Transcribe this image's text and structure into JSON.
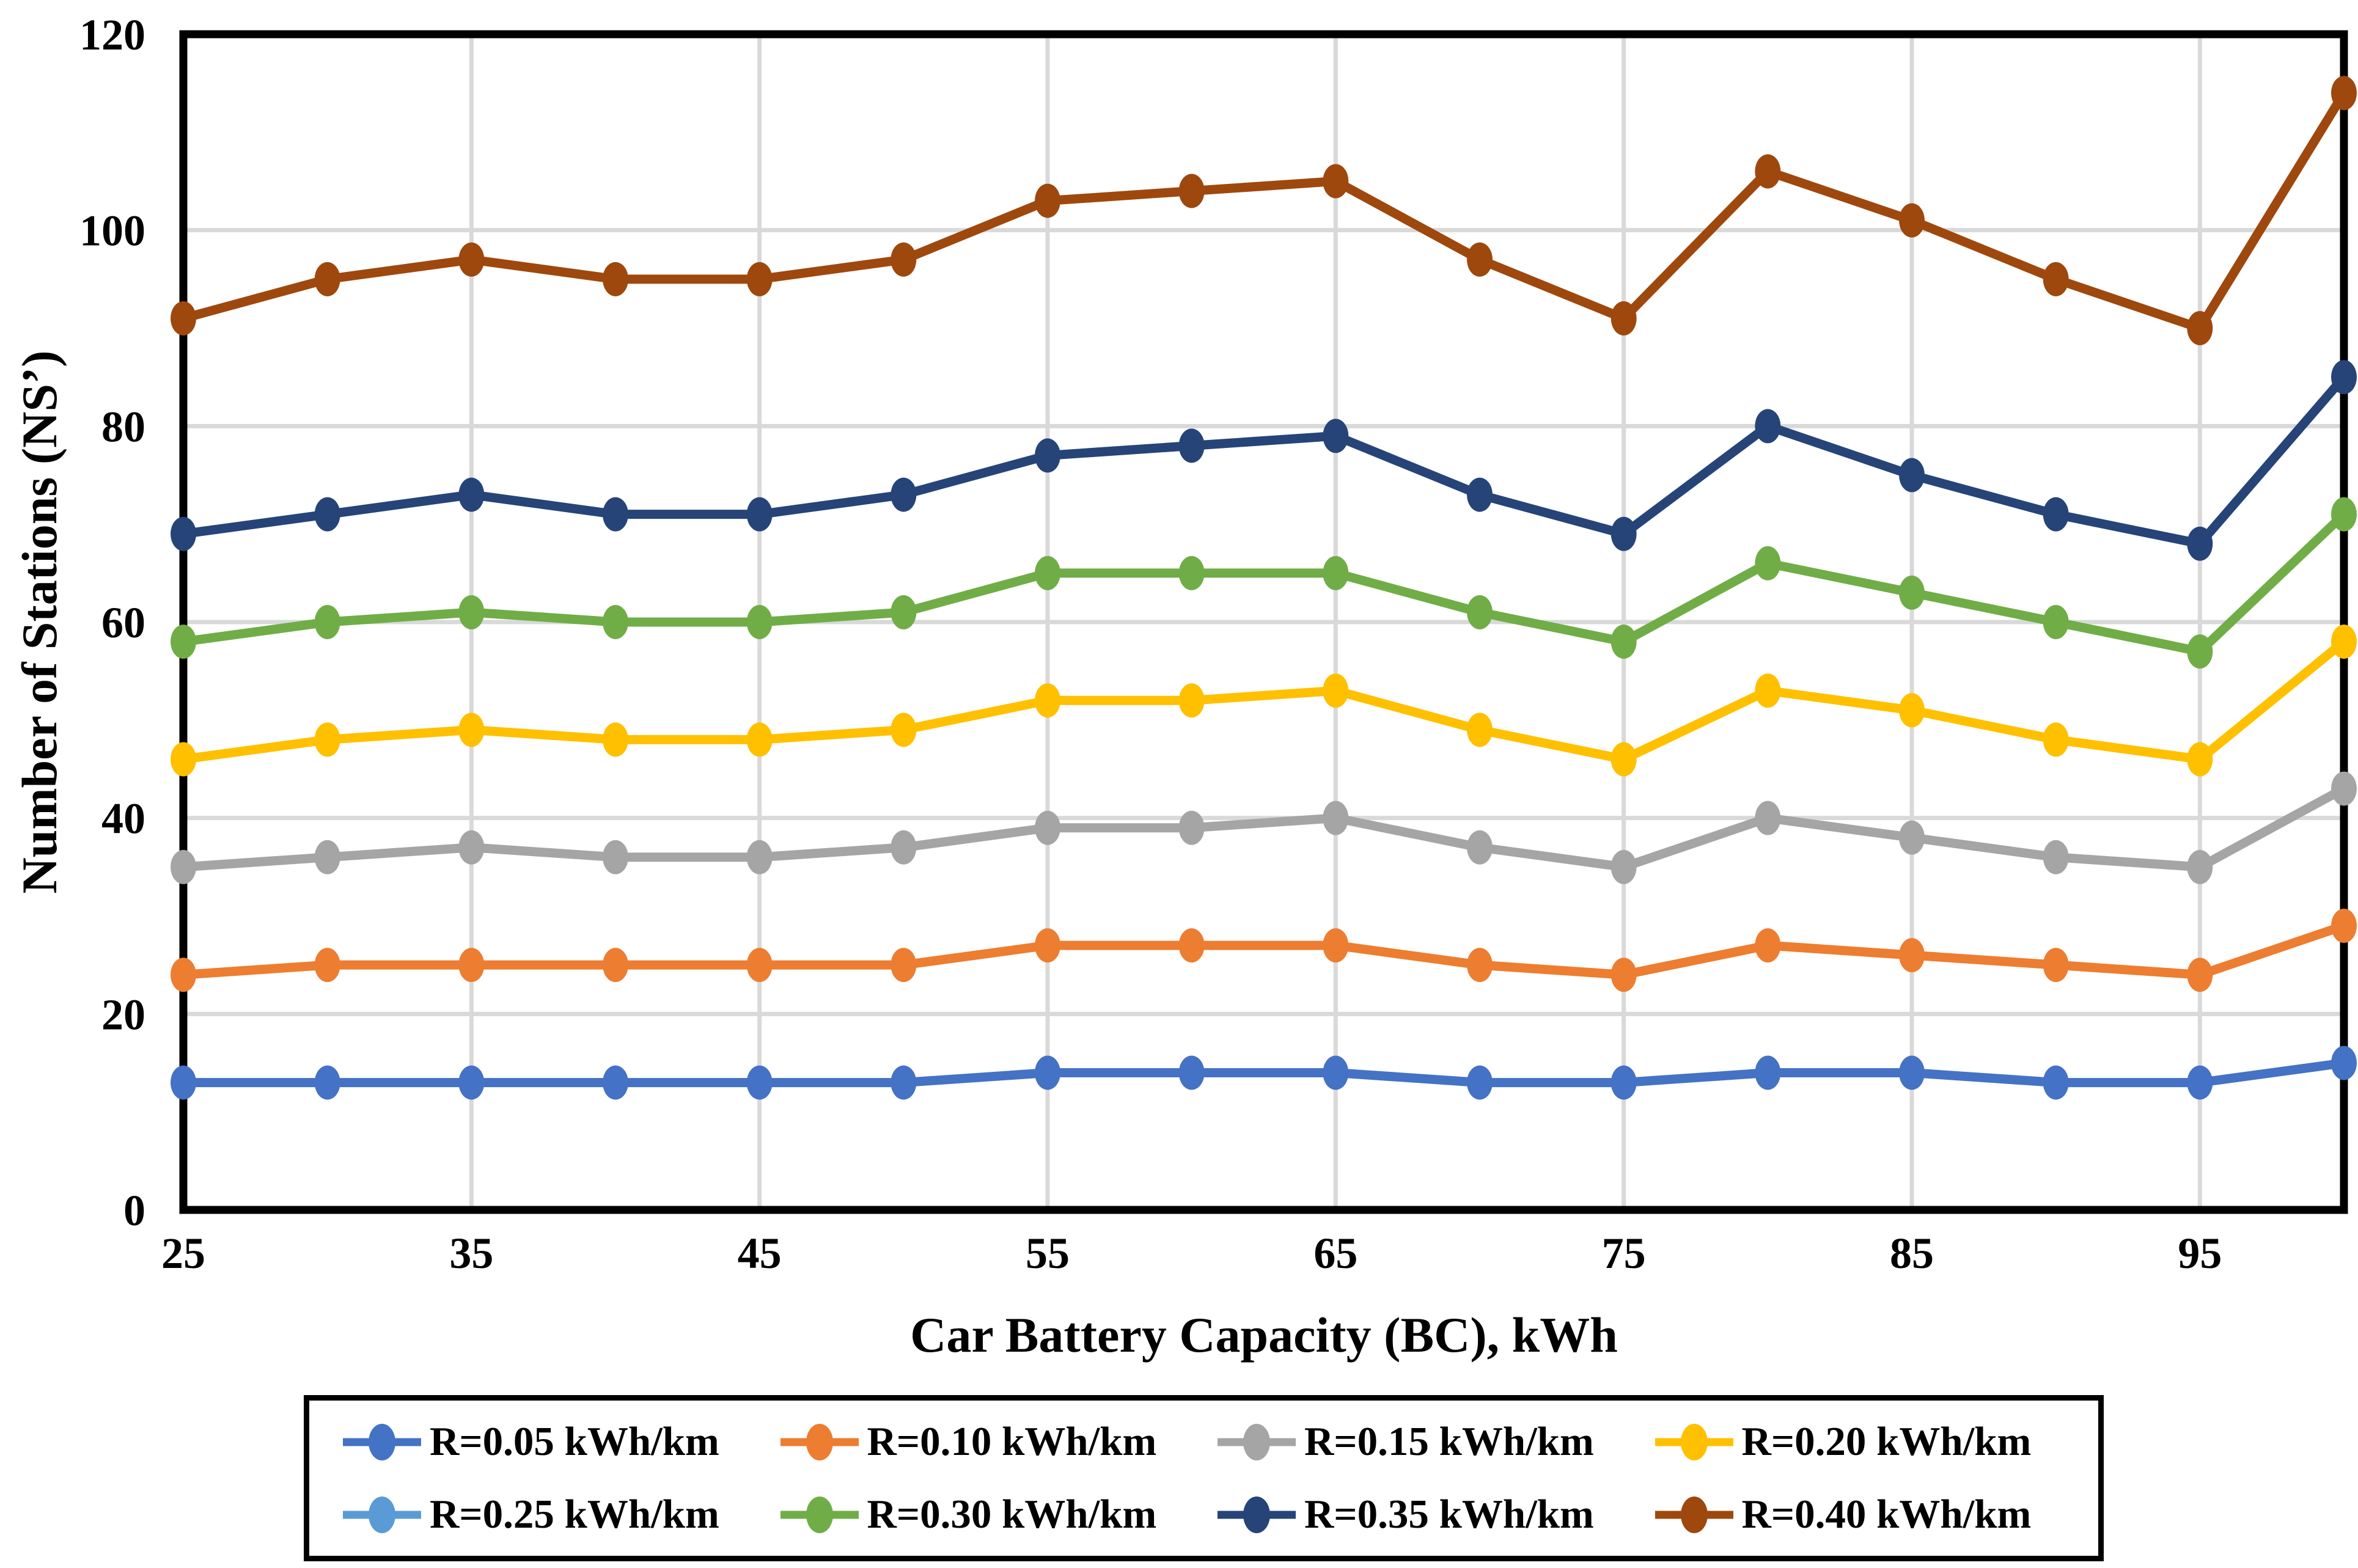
{
  "chart_data": {
    "type": "line",
    "title": "",
    "xlabel": "Car Battery Capacity (BC), kWh",
    "ylabel": "Number of Stations (NS’)",
    "x": [
      25,
      30,
      35,
      40,
      45,
      50,
      55,
      60,
      65,
      70,
      75,
      80,
      85,
      90,
      95,
      100
    ],
    "xlim": [
      25,
      100
    ],
    "ylim": [
      0,
      120
    ],
    "xticks_labeled": [
      25,
      35,
      45,
      55,
      65,
      75,
      85,
      95
    ],
    "yticks": [
      0,
      20,
      40,
      60,
      80,
      100,
      120
    ],
    "grid": {
      "horizontal": [
        20,
        40,
        60,
        80,
        100
      ],
      "vertical": [
        35,
        45,
        55,
        65,
        75,
        85,
        95
      ],
      "color": "#D9D9D9"
    },
    "axis_color": "#000000",
    "legend_position": "bottom",
    "legend_layout": {
      "rows": 2,
      "columns": 4
    },
    "series": [
      {
        "name": "R=0.05 kWh/km",
        "color": "#4472C4",
        "values": [
          13,
          13,
          13,
          13,
          13,
          13,
          14,
          14,
          14,
          13,
          13,
          14,
          14,
          13,
          13,
          15
        ]
      },
      {
        "name": "R=0.10 kWh/km",
        "color": "#ED7D31",
        "values": [
          24,
          25,
          25,
          25,
          25,
          25,
          27,
          27,
          27,
          25,
          24,
          27,
          26,
          25,
          24,
          29
        ]
      },
      {
        "name": "R=0.15 kWh/km",
        "color": "#A5A5A5",
        "values": [
          35,
          36,
          37,
          36,
          36,
          37,
          39,
          39,
          40,
          37,
          35,
          40,
          38,
          36,
          35,
          43
        ]
      },
      {
        "name": "R=0.20 kWh/km",
        "color": "#FFC000",
        "values": [
          46,
          48,
          49,
          48,
          48,
          49,
          52,
          52,
          53,
          49,
          46,
          53,
          51,
          48,
          46,
          58
        ]
      },
      {
        "name": "R=0.25 kWh/km",
        "color": "#5B9BD5",
        "values": null,
        "visible_in_plot": false
      },
      {
        "name": "R=0.30 kWh/km",
        "color": "#70AD47",
        "values": [
          58,
          60,
          61,
          60,
          60,
          61,
          65,
          65,
          65,
          61,
          58,
          66,
          63,
          60,
          57,
          71
        ]
      },
      {
        "name": "R=0.35 kWh/km",
        "color": "#264478",
        "values": [
          69,
          71,
          73,
          71,
          71,
          73,
          77,
          78,
          79,
          73,
          69,
          80,
          75,
          71,
          68,
          85
        ]
      },
      {
        "name": "R=0.40 kWh/km",
        "color": "#9E480E",
        "values": [
          91,
          95,
          97,
          95,
          95,
          97,
          103,
          104,
          105,
          97,
          91,
          106,
          101,
          95,
          90,
          114
        ]
      }
    ]
  }
}
